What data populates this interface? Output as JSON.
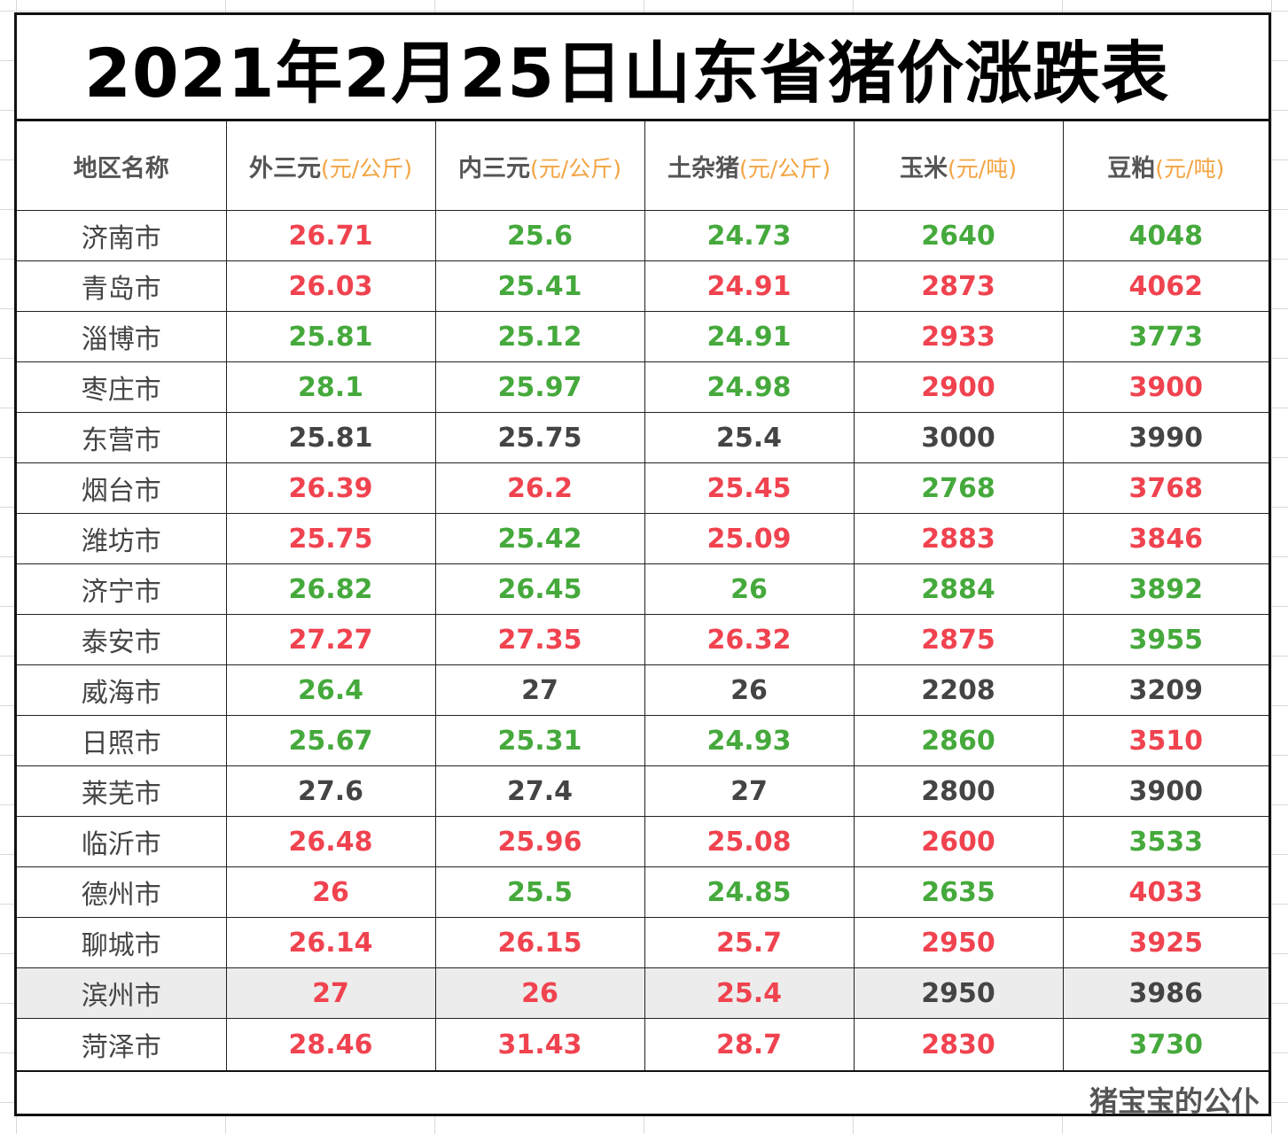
{
  "title": "2021年2月25日山东省猪价涨跌表",
  "headers": [
    {
      "name": "地区名称",
      "unit": ""
    },
    {
      "name": "外三元",
      "unit": "(元/公斤)"
    },
    {
      "name": "内三元",
      "unit": "(元/公斤)"
    },
    {
      "name": "土杂猪",
      "unit": "(元/公斤)"
    },
    {
      "name": "玉米",
      "unit": "(元/吨)"
    },
    {
      "name": "豆粕",
      "unit": "(元/吨)"
    }
  ],
  "colors": {
    "up": "#f0434f",
    "down": "#45a93c",
    "flat": "#444444",
    "unit": "#f4a442"
  },
  "rows": [
    {
      "region": "济南市",
      "values": [
        "26.71",
        "25.6",
        "24.73",
        "2640",
        "4048"
      ],
      "trend": [
        "up",
        "down",
        "down",
        "down",
        "down"
      ]
    },
    {
      "region": "青岛市",
      "values": [
        "26.03",
        "25.41",
        "24.91",
        "2873",
        "4062"
      ],
      "trend": [
        "up",
        "down",
        "up",
        "up",
        "up"
      ]
    },
    {
      "region": "淄博市",
      "values": [
        "25.81",
        "25.12",
        "24.91",
        "2933",
        "3773"
      ],
      "trend": [
        "down",
        "down",
        "down",
        "up",
        "down"
      ]
    },
    {
      "region": "枣庄市",
      "values": [
        "28.1",
        "25.97",
        "24.98",
        "2900",
        "3900"
      ],
      "trend": [
        "down",
        "down",
        "down",
        "up",
        "up"
      ]
    },
    {
      "region": "东营市",
      "values": [
        "25.81",
        "25.75",
        "25.4",
        "3000",
        "3990"
      ],
      "trend": [
        "flat",
        "flat",
        "flat",
        "flat",
        "flat"
      ]
    },
    {
      "region": "烟台市",
      "values": [
        "26.39",
        "26.2",
        "25.45",
        "2768",
        "3768"
      ],
      "trend": [
        "up",
        "up",
        "up",
        "down",
        "up"
      ]
    },
    {
      "region": "潍坊市",
      "values": [
        "25.75",
        "25.42",
        "25.09",
        "2883",
        "3846"
      ],
      "trend": [
        "up",
        "down",
        "up",
        "up",
        "up"
      ]
    },
    {
      "region": "济宁市",
      "values": [
        "26.82",
        "26.45",
        "26",
        "2884",
        "3892"
      ],
      "trend": [
        "down",
        "down",
        "down",
        "down",
        "down"
      ]
    },
    {
      "region": "泰安市",
      "values": [
        "27.27",
        "27.35",
        "26.32",
        "2875",
        "3955"
      ],
      "trend": [
        "up",
        "up",
        "up",
        "up",
        "down"
      ]
    },
    {
      "region": "威海市",
      "values": [
        "26.4",
        "27",
        "26",
        "2208",
        "3209"
      ],
      "trend": [
        "down",
        "flat",
        "flat",
        "flat",
        "flat"
      ]
    },
    {
      "region": "日照市",
      "values": [
        "25.67",
        "25.31",
        "24.93",
        "2860",
        "3510"
      ],
      "trend": [
        "down",
        "down",
        "down",
        "down",
        "up"
      ]
    },
    {
      "region": "莱芜市",
      "values": [
        "27.6",
        "27.4",
        "27",
        "2800",
        "3900"
      ],
      "trend": [
        "flat",
        "flat",
        "flat",
        "flat",
        "flat"
      ]
    },
    {
      "region": "临沂市",
      "values": [
        "26.48",
        "25.96",
        "25.08",
        "2600",
        "3533"
      ],
      "trend": [
        "up",
        "up",
        "up",
        "up",
        "down"
      ]
    },
    {
      "region": "德州市",
      "values": [
        "26",
        "25.5",
        "24.85",
        "2635",
        "4033"
      ],
      "trend": [
        "up",
        "down",
        "down",
        "down",
        "up"
      ]
    },
    {
      "region": "聊城市",
      "values": [
        "26.14",
        "26.15",
        "25.7",
        "2950",
        "3925"
      ],
      "trend": [
        "up",
        "up",
        "up",
        "up",
        "up"
      ]
    },
    {
      "region": "滨州市",
      "values": [
        "27",
        "26",
        "25.4",
        "2950",
        "3986"
      ],
      "trend": [
        "up",
        "up",
        "up",
        "flat",
        "flat"
      ],
      "highlight": true
    },
    {
      "region": "菏泽市",
      "values": [
        "28.46",
        "31.43",
        "28.7",
        "2830",
        "3730"
      ],
      "trend": [
        "up",
        "up",
        "up",
        "up",
        "down"
      ]
    }
  ],
  "footer": "猪宝宝的公仆"
}
